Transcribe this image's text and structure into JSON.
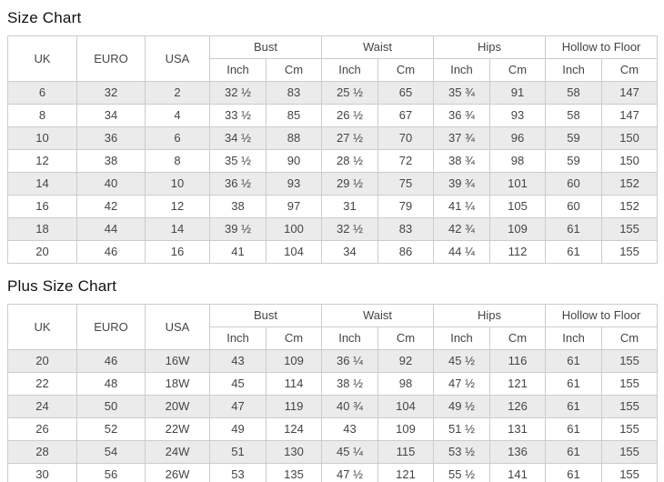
{
  "titles": {
    "size_chart": "Size Chart",
    "plus_size_chart": "Plus Size Chart"
  },
  "columns": {
    "uk": "UK",
    "euro": "EURO",
    "usa": "USA",
    "bust": "Bust",
    "waist": "Waist",
    "hips": "Hips",
    "hollow_to_floor": "Hollow to Floor",
    "inch": "Inch",
    "cm": "Cm"
  },
  "size_chart_rows": [
    [
      "6",
      "32",
      "2",
      "32 ½",
      "83",
      "25 ½",
      "65",
      "35 ¾",
      "91",
      "58",
      "147"
    ],
    [
      "8",
      "34",
      "4",
      "33 ½",
      "85",
      "26 ½",
      "67",
      "36 ¾",
      "93",
      "58",
      "147"
    ],
    [
      "10",
      "36",
      "6",
      "34 ½",
      "88",
      "27 ½",
      "70",
      "37 ¾",
      "96",
      "59",
      "150"
    ],
    [
      "12",
      "38",
      "8",
      "35 ½",
      "90",
      "28 ½",
      "72",
      "38 ¾",
      "98",
      "59",
      "150"
    ],
    [
      "14",
      "40",
      "10",
      "36 ½",
      "93",
      "29 ½",
      "75",
      "39 ¾",
      "101",
      "60",
      "152"
    ],
    [
      "16",
      "42",
      "12",
      "38",
      "97",
      "31",
      "79",
      "41 ¼",
      "105",
      "60",
      "152"
    ],
    [
      "18",
      "44",
      "14",
      "39 ½",
      "100",
      "32 ½",
      "83",
      "42 ¾",
      "109",
      "61",
      "155"
    ],
    [
      "20",
      "46",
      "16",
      "41",
      "104",
      "34",
      "86",
      "44 ¼",
      "112",
      "61",
      "155"
    ]
  ],
  "plus_size_chart_rows": [
    [
      "20",
      "46",
      "16W",
      "43",
      "109",
      "36 ¼",
      "92",
      "45 ½",
      "116",
      "61",
      "155"
    ],
    [
      "22",
      "48",
      "18W",
      "45",
      "114",
      "38 ½",
      "98",
      "47 ½",
      "121",
      "61",
      "155"
    ],
    [
      "24",
      "50",
      "20W",
      "47",
      "119",
      "40 ¾",
      "104",
      "49 ½",
      "126",
      "61",
      "155"
    ],
    [
      "26",
      "52",
      "22W",
      "49",
      "124",
      "43",
      "109",
      "51 ½",
      "131",
      "61",
      "155"
    ],
    [
      "28",
      "54",
      "24W",
      "51",
      "130",
      "45 ¼",
      "115",
      "53 ½",
      "136",
      "61",
      "155"
    ],
    [
      "30",
      "56",
      "26W",
      "53",
      "135",
      "47 ½",
      "121",
      "55 ½",
      "141",
      "61",
      "155"
    ]
  ]
}
